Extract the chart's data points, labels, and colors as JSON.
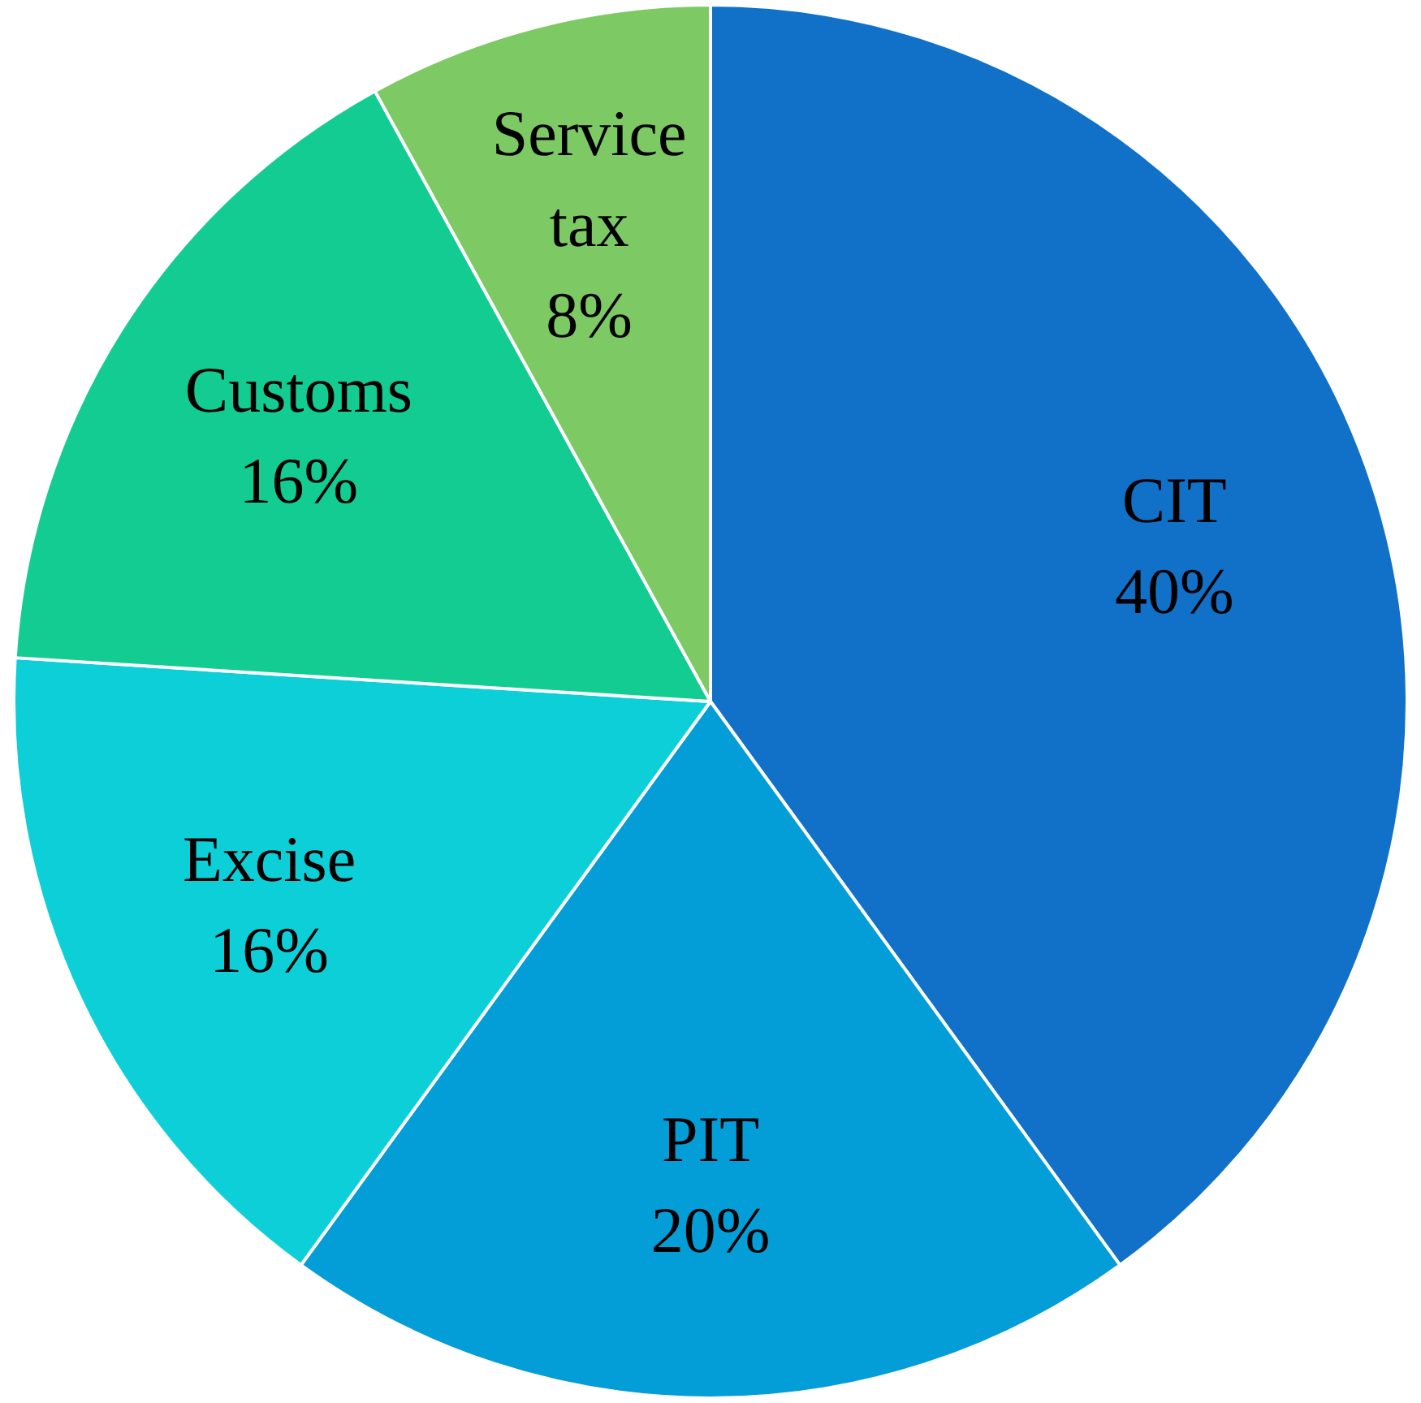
{
  "chart_data": {
    "type": "pie",
    "categories": [
      "CIT",
      "PIT",
      "Excise",
      "Customs",
      "Service tax"
    ],
    "values": [
      40,
      20,
      16,
      16,
      8
    ],
    "colors": [
      "#1170c8",
      "#039dd8",
      "#0ccfd8",
      "#13cc92",
      "#7dc964"
    ],
    "value_labels": [
      "40%",
      "20%",
      "16%",
      "16%",
      "8%"
    ],
    "legend": false
  }
}
